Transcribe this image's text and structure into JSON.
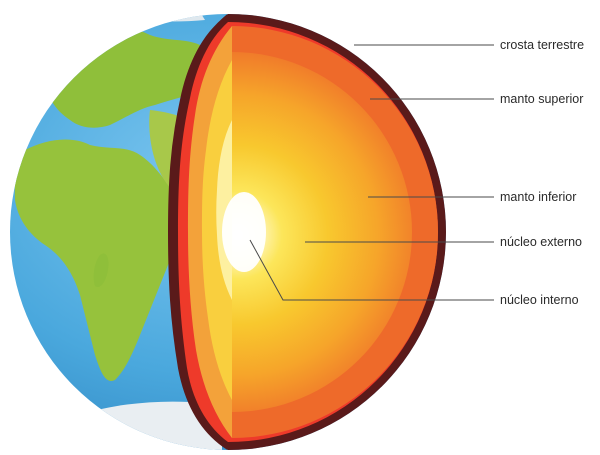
{
  "layers": [
    {
      "id": "crust",
      "label": "crosta terrestre"
    },
    {
      "id": "upper-mantle",
      "label": "manto superior"
    },
    {
      "id": "lower-mantle",
      "label": "manto inferior"
    },
    {
      "id": "outer-core",
      "label": "núcleo externo"
    },
    {
      "id": "inner-core",
      "label": "núcleo interno"
    }
  ],
  "colors": {
    "ocean": "#4aa8dd",
    "land": "#8fbf3a",
    "ice": "#e9eef2",
    "crust": "#5a1a1a",
    "upper_mantle": "#ee5a2a",
    "lower_mantle": "#f7a92a",
    "outer_core": "#fad53a",
    "inner_core": "#fff8c8"
  }
}
